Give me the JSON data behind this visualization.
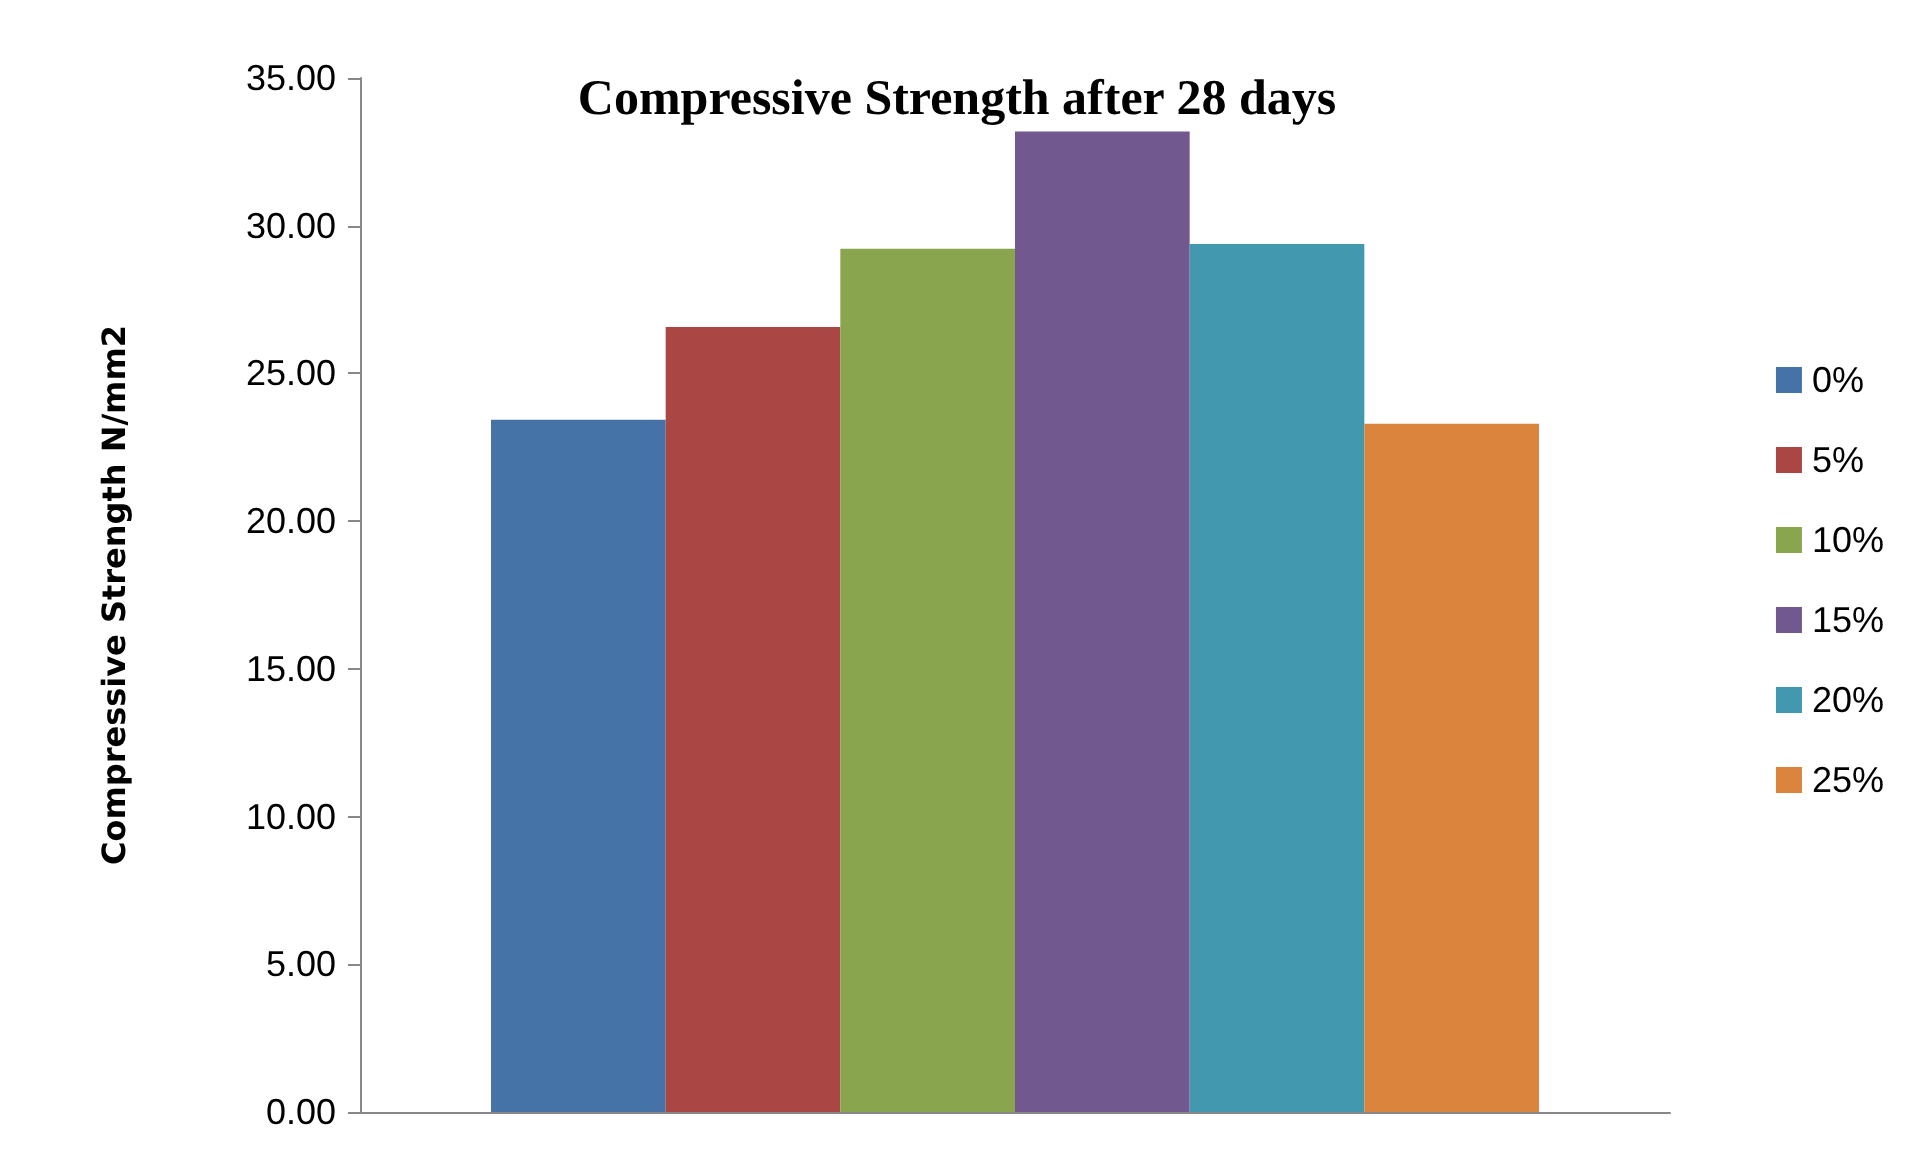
{
  "chart_data": {
    "type": "bar",
    "title": "Compressive Strength after 28 days",
    "ylabel": "Compressive Strength N/mm2",
    "categories": [
      null
    ],
    "series": [
      {
        "name": "0%",
        "color": "#4572a7",
        "values": [
          23.43
        ]
      },
      {
        "name": "5%",
        "color": "#aa4643",
        "values": [
          26.57
        ]
      },
      {
        "name": "10%",
        "color": "#89a54e",
        "values": [
          29.22
        ]
      },
      {
        "name": "15%",
        "color": "#71588f",
        "values": [
          33.19
        ]
      },
      {
        "name": "20%",
        "color": "#4198af",
        "values": [
          29.38
        ]
      },
      {
        "name": "25%",
        "color": "#db843d",
        "values": [
          23.3
        ]
      }
    ],
    "ylim": [
      0,
      35
    ],
    "yticks": [
      {
        "value": 0,
        "label": "0.00"
      },
      {
        "value": 5,
        "label": "5.00"
      },
      {
        "value": 10,
        "label": "10.00"
      },
      {
        "value": 15,
        "label": "15.00"
      },
      {
        "value": 20,
        "label": "20.00"
      },
      {
        "value": 25,
        "label": "25.00"
      },
      {
        "value": 30,
        "label": "30.00"
      },
      {
        "value": 35,
        "label": "35.00"
      }
    ],
    "grid": false,
    "legend": "right"
  }
}
